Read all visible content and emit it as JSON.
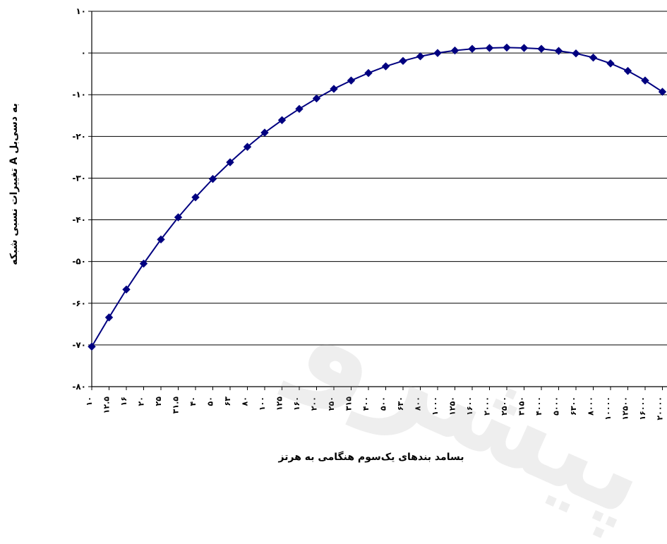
{
  "chart_data": {
    "type": "line",
    "title": "",
    "xlabel": "بسامد بندهای یک‌سوم هنگامی به هرتز",
    "ylabel": "تغییرات نسبی شبکه A به دسی‌بل",
    "ylim": [
      -80,
      10
    ],
    "yticks": [
      "۱۰",
      "۰",
      "-۱۰",
      "-۲۰",
      "-۳۰",
      "-۴۰",
      "-۵۰",
      "-۶۰",
      "-۷۰",
      "-۸۰"
    ],
    "grid": true,
    "legend": "none",
    "categories": [
      "۱۰",
      "۱۲.۵",
      "۱۶",
      "۲۰",
      "۲۵",
      "۳۱.۵",
      "۴۰",
      "۵۰",
      "۶۳",
      "۸۰",
      "۱۰۰",
      "۱۲۵",
      "۱۶۰",
      "۲۰۰",
      "۲۵۰",
      "۳۱۵",
      "۴۰۰",
      "۵۰۰",
      "۶۳۰",
      "۸۰۰",
      "۱۰۰۰",
      "۱۲۵۰",
      "۱۶۰۰",
      "۲۰۰۰",
      "۲۵۰۰",
      "۳۱۵۰",
      "۴۰۰۰",
      "۵۰۰۰",
      "۶۳۰۰",
      "۸۰۰۰",
      "۱۰۰۰۰",
      "۱۲۵۰۰",
      "۱۶۰۰۰",
      "۲۰۰۰۰"
    ],
    "series": [
      {
        "values": [
          -70.4,
          -63.4,
          -56.7,
          -50.5,
          -44.7,
          -39.4,
          -34.6,
          -30.2,
          -26.2,
          -22.5,
          -19.1,
          -16.1,
          -13.4,
          -10.9,
          -8.6,
          -6.6,
          -4.8,
          -3.2,
          -1.9,
          -0.8,
          0.0,
          0.6,
          1.0,
          1.2,
          1.3,
          1.2,
          1.0,
          0.5,
          -0.1,
          -1.1,
          -2.5,
          -4.3,
          -6.6,
          -9.3
        ],
        "color": "#000080"
      }
    ],
    "watermark": "پیشرو"
  }
}
